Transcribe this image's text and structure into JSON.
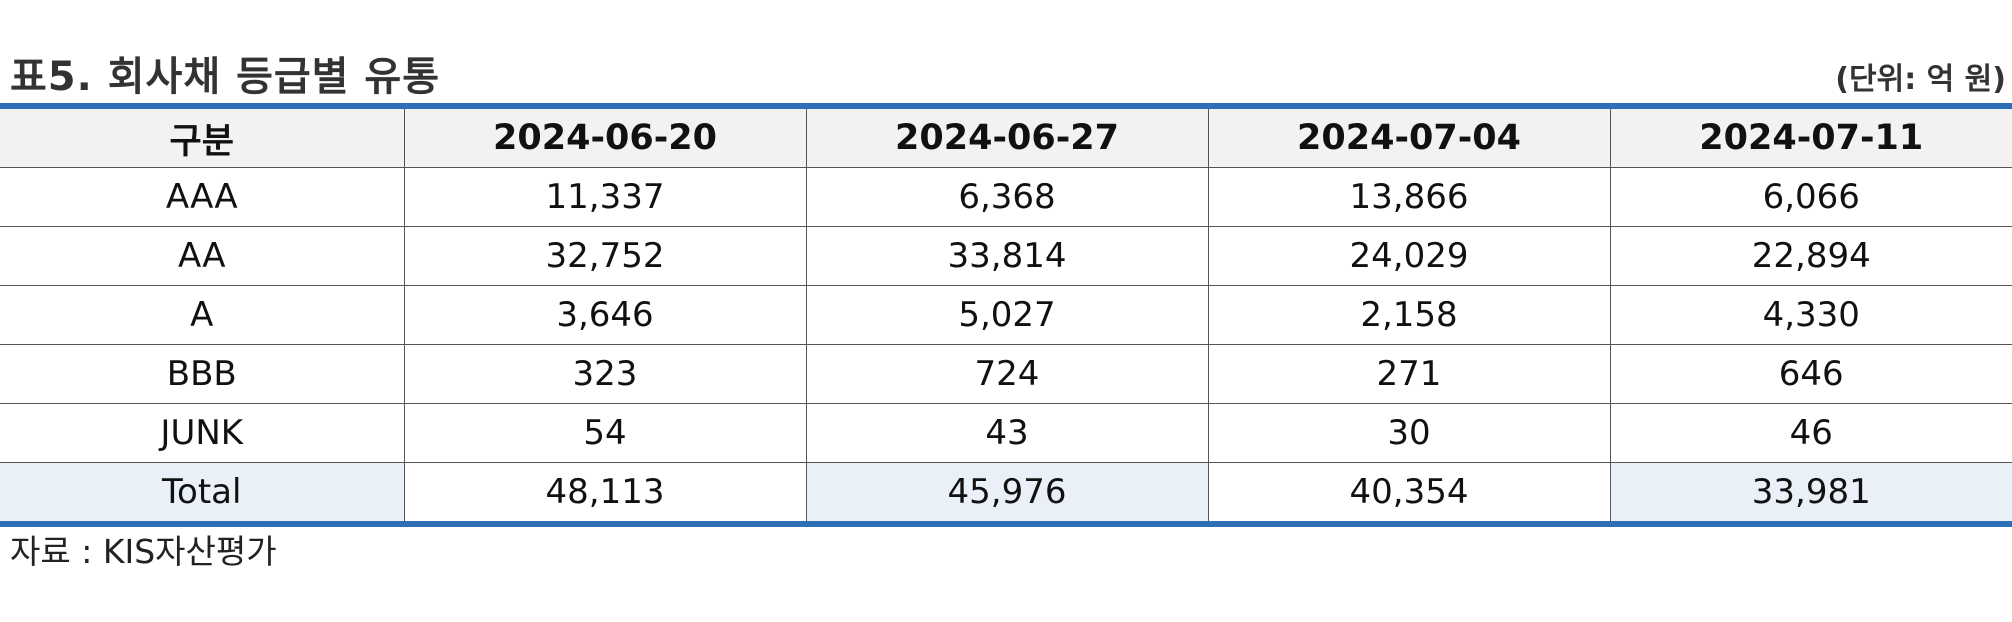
{
  "title": "표5. 회사채 등급별 유통",
  "unit": "(단위: 억 원)",
  "table": {
    "headers": [
      "구분",
      "2024-06-20",
      "2024-06-27",
      "2024-07-04",
      "2024-07-11"
    ],
    "rows": [
      [
        "AAA",
        "11,337",
        "6,368",
        "13,866",
        "6,066"
      ],
      [
        "AA",
        "32,752",
        "33,814",
        "24,029",
        "22,894"
      ],
      [
        "A",
        "3,646",
        "5,027",
        "2,158",
        "4,330"
      ],
      [
        "BBB",
        "323",
        "724",
        "271",
        "646"
      ],
      [
        "JUNK",
        "54",
        "43",
        "30",
        "46"
      ],
      [
        "Total",
        "48,113",
        "45,976",
        "40,354",
        "33,981"
      ]
    ]
  },
  "source": "자료 : KIS자산평가",
  "colors": {
    "accent_rule": "#2e6eb5",
    "header_bg": "#f2f2f2",
    "total_row_bg": "#eaf0f7"
  }
}
